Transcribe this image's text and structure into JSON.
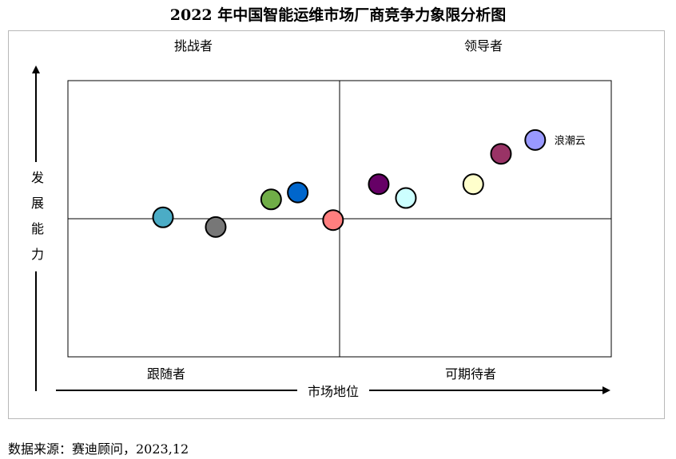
{
  "title": "2022 年中国智能运维市场厂商竞争力象限分析图",
  "source": "数据来源：赛迪顾问，2023,12",
  "chart_data": {
    "type": "scatter",
    "title": "2022 年中国智能运维市场厂商竞争力象限分析图",
    "xlabel": "市场地位",
    "ylabel": "发展能力",
    "xlim": [
      0,
      100
    ],
    "ylim": [
      0,
      100
    ],
    "grid": false,
    "quadrants": {
      "top_left": "挑战者",
      "top_right": "领导者",
      "bottom_left": "跟随者",
      "bottom_right": "可期待者"
    },
    "points": [
      {
        "x": 17.5,
        "y": 50.5,
        "color": "#4bacc6",
        "label": ""
      },
      {
        "x": 27.2,
        "y": 47.0,
        "color": "#777777",
        "label": ""
      },
      {
        "x": 37.4,
        "y": 57.0,
        "color": "#70ad47",
        "label": ""
      },
      {
        "x": 42.3,
        "y": 59.5,
        "color": "#0066cc",
        "label": ""
      },
      {
        "x": 48.8,
        "y": 49.5,
        "color": "#ff7f7f",
        "label": ""
      },
      {
        "x": 57.2,
        "y": 62.5,
        "color": "#660066",
        "label": ""
      },
      {
        "x": 62.2,
        "y": 57.5,
        "color": "#ccffff",
        "label": ""
      },
      {
        "x": 74.6,
        "y": 62.5,
        "color": "#ffffcc",
        "label": ""
      },
      {
        "x": 79.7,
        "y": 73.5,
        "color": "#993366",
        "label": ""
      },
      {
        "x": 86.0,
        "y": 78.5,
        "color": "#9999ff",
        "label": "浪潮云"
      }
    ]
  }
}
